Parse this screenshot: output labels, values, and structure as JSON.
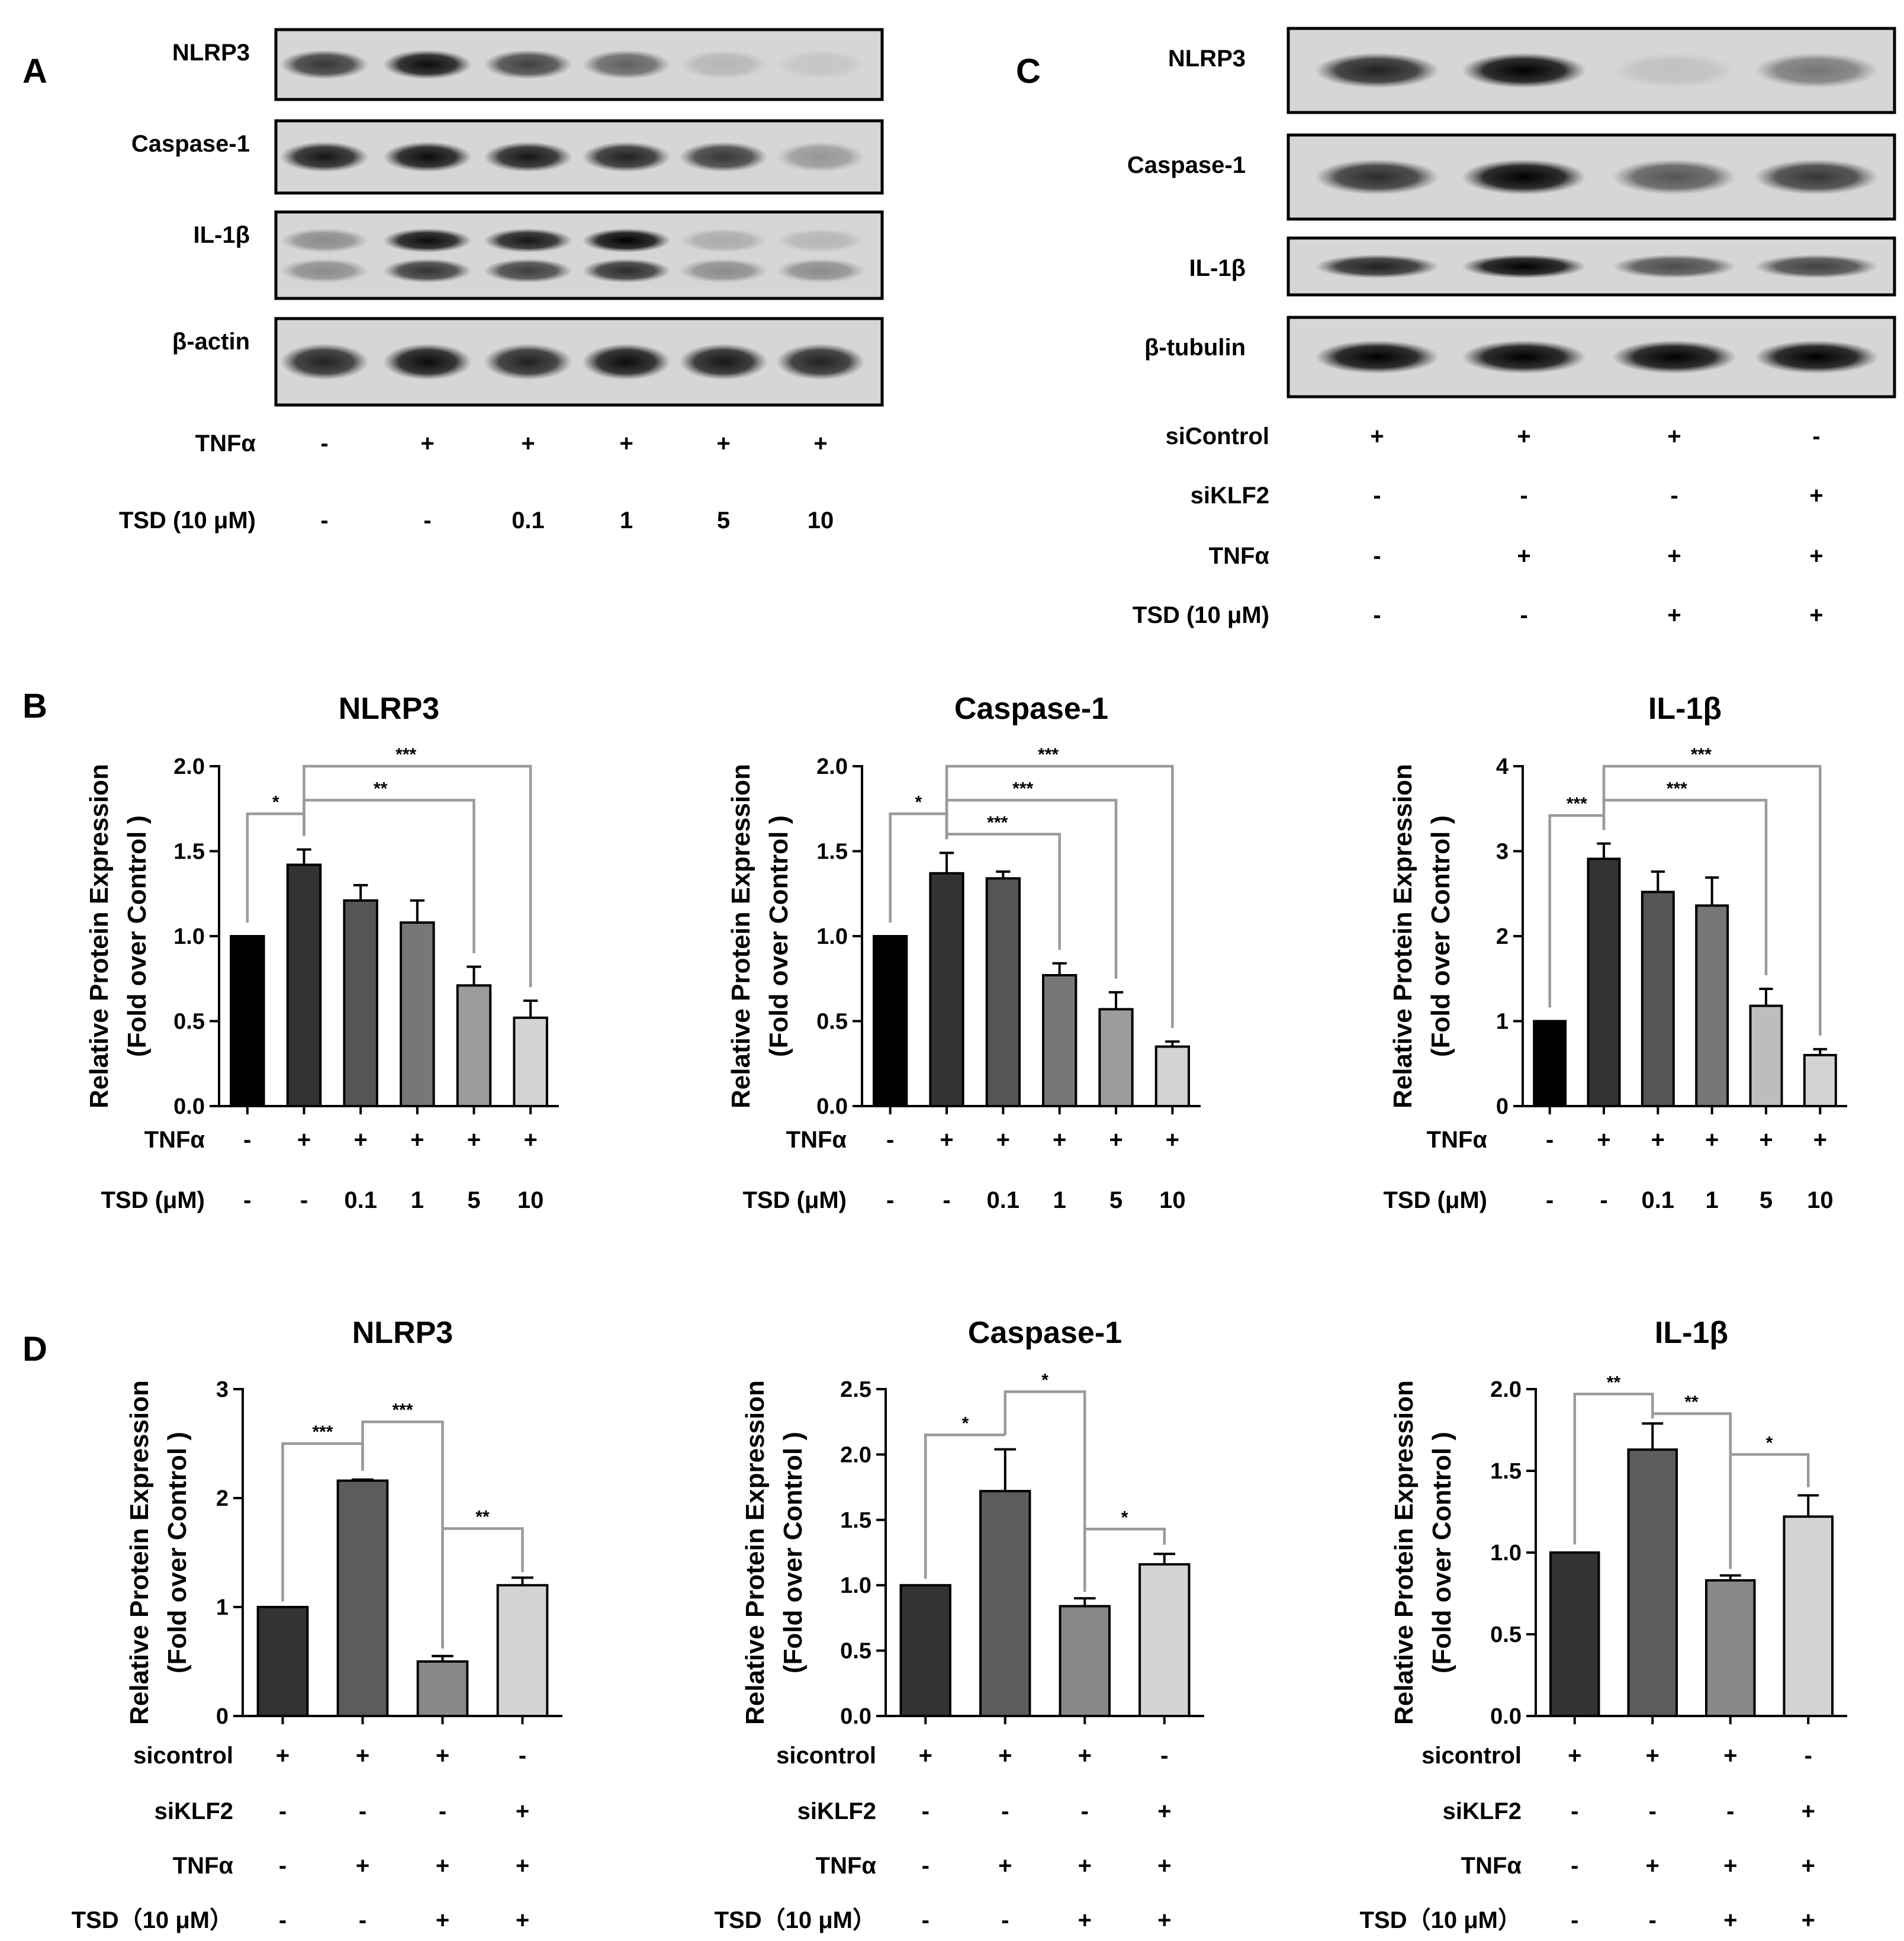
{
  "panels": {
    "A": "A",
    "B": "B",
    "C": "C",
    "D": "D"
  },
  "westernA": {
    "bands": [
      "NLRP3",
      "Caspase-1",
      "IL-1β",
      "β-actin"
    ],
    "conditions": [
      {
        "label": "TNFα",
        "values": [
          "-",
          "+",
          "+",
          "+",
          "+",
          "+"
        ]
      },
      {
        "label": "TSD (10 μM)",
        "values": [
          "-",
          "-",
          "0.1",
          "1",
          "5",
          "10"
        ]
      }
    ],
    "intensities": [
      [
        0.75,
        0.95,
        0.7,
        0.55,
        0.15,
        0.08
      ],
      [
        0.9,
        0.95,
        0.9,
        0.85,
        0.75,
        0.3
      ],
      [
        0.35,
        0.95,
        0.9,
        1.0,
        0.2,
        0.15
      ],
      [
        0.85,
        0.95,
        0.85,
        0.95,
        0.9,
        0.85
      ]
    ]
  },
  "westernC": {
    "bands": [
      "NLRP3",
      "Caspase-1",
      "IL-1β",
      "β-tubulin"
    ],
    "conditions": [
      {
        "label": "siControl",
        "values": [
          "+",
          "+",
          "+",
          "-"
        ]
      },
      {
        "label": "siKLF2",
        "values": [
          "-",
          "-",
          "-",
          "+"
        ]
      },
      {
        "label": "TNFα",
        "values": [
          "-",
          "+",
          "+",
          "+"
        ]
      },
      {
        "label": "TSD (10 μM)",
        "values": [
          "-",
          "-",
          "+",
          "+"
        ]
      }
    ],
    "intensities": [
      [
        0.85,
        1.0,
        0.1,
        0.45
      ],
      [
        0.8,
        1.0,
        0.6,
        0.75
      ],
      [
        0.85,
        1.0,
        0.65,
        0.7
      ],
      [
        1.0,
        1.0,
        1.0,
        1.0
      ]
    ]
  },
  "chart_data": [
    {
      "type": "bar",
      "panel": "B",
      "title": "NLRP3",
      "ylabel": "Relative Protein Expression",
      "ylabel2": "(Fold over Control )",
      "ylim": [
        0,
        2.0
      ],
      "yticks": [
        "0.0",
        "0.5",
        "1.0",
        "1.5",
        "2.0"
      ],
      "values": [
        1.0,
        1.42,
        1.21,
        1.08,
        0.71,
        0.52
      ],
      "errors": [
        0,
        0.09,
        0.09,
        0.13,
        0.11,
        0.1
      ],
      "colors": [
        "#000000",
        "#333333",
        "#555555",
        "#777777",
        "#9c9c9c",
        "#d3d3d3"
      ],
      "conditions": [
        {
          "label": "TNFα",
          "values": [
            "-",
            "+",
            "+",
            "+",
            "+",
            "+"
          ]
        },
        {
          "label": "TSD (μM)",
          "values": [
            "-",
            "-",
            "0.1",
            "1",
            "5",
            "10"
          ]
        }
      ],
      "significance": [
        {
          "from": 0,
          "to": 1,
          "label": "*",
          "level": 1.72
        },
        {
          "from": 1,
          "to": 4,
          "label": "**",
          "level": 1.8
        },
        {
          "from": 1,
          "to": 5,
          "label": "***",
          "level": 2.0
        }
      ]
    },
    {
      "type": "bar",
      "panel": "B",
      "title": "Caspase-1",
      "ylabel": "Relative Protein Expression",
      "ylabel2": "(Fold over Control )",
      "ylim": [
        0,
        2.0
      ],
      "yticks": [
        "0.0",
        "0.5",
        "1.0",
        "1.5",
        "2.0"
      ],
      "values": [
        1.0,
        1.37,
        1.34,
        0.77,
        0.57,
        0.35
      ],
      "errors": [
        0,
        0.12,
        0.04,
        0.07,
        0.1,
        0.03
      ],
      "colors": [
        "#000000",
        "#333333",
        "#555555",
        "#777777",
        "#9c9c9c",
        "#d3d3d3"
      ],
      "conditions": [
        {
          "label": "TNFα",
          "values": [
            "-",
            "+",
            "+",
            "+",
            "+",
            "+"
          ]
        },
        {
          "label": "TSD (μM)",
          "values": [
            "-",
            "-",
            "0.1",
            "1",
            "5",
            "10"
          ]
        }
      ],
      "significance": [
        {
          "from": 0,
          "to": 1,
          "label": "*",
          "level": 1.72
        },
        {
          "from": 1,
          "to": 3,
          "label": "***",
          "level": 1.6
        },
        {
          "from": 1,
          "to": 4,
          "label": "***",
          "level": 1.8
        },
        {
          "from": 1,
          "to": 5,
          "label": "***",
          "level": 2.0
        }
      ]
    },
    {
      "type": "bar",
      "panel": "B",
      "title": "IL-1β",
      "ylabel": "Relative Protein Expression",
      "ylabel2": "(Fold over Control )",
      "ylim": [
        0,
        4
      ],
      "yticks": [
        "0",
        "1",
        "2",
        "3",
        "4"
      ],
      "values": [
        1.0,
        2.91,
        2.52,
        2.36,
        1.18,
        0.6
      ],
      "errors": [
        0,
        0.18,
        0.24,
        0.33,
        0.2,
        0.07
      ],
      "colors": [
        "#000000",
        "#333333",
        "#555555",
        "#777777",
        "#bdbdbd",
        "#d3d3d3"
      ],
      "conditions": [
        {
          "label": "TNFα",
          "values": [
            "-",
            "+",
            "+",
            "+",
            "+",
            "+"
          ]
        },
        {
          "label": "TSD (μM)",
          "values": [
            "-",
            "-",
            "0.1",
            "1",
            "5",
            "10"
          ]
        }
      ],
      "significance": [
        {
          "from": 0,
          "to": 1,
          "label": "***",
          "level": 3.42
        },
        {
          "from": 1,
          "to": 4,
          "label": "***",
          "level": 3.6
        },
        {
          "from": 1,
          "to": 5,
          "label": "***",
          "level": 4.0
        }
      ]
    },
    {
      "type": "bar",
      "panel": "D",
      "title": "NLRP3",
      "ylabel": "Relative Protein Expression",
      "ylabel2": "(Fold over Control )",
      "ylim": [
        0,
        3
      ],
      "yticks": [
        "0",
        "1",
        "2",
        "3"
      ],
      "values": [
        1.0,
        2.16,
        0.5,
        1.2
      ],
      "errors": [
        0,
        0.01,
        0.05,
        0.07
      ],
      "colors": [
        "#333333",
        "#5c5c5c",
        "#888888",
        "#d3d3d3"
      ],
      "conditions": [
        {
          "label": "sicontrol",
          "values": [
            "+",
            "+",
            "+",
            "-"
          ]
        },
        {
          "label": "siKLF2",
          "values": [
            "-",
            "-",
            "-",
            "+"
          ]
        },
        {
          "label": "TNFα",
          "values": [
            "-",
            "+",
            "+",
            "+"
          ]
        },
        {
          "label": "TSD（10 μM）",
          "values": [
            "-",
            "-",
            "+",
            "+"
          ]
        }
      ],
      "significance": [
        {
          "from": 0,
          "to": 1,
          "label": "***",
          "level": 2.5,
          "dropFrom": 1.05,
          "dropTo": 2.25
        },
        {
          "from": 1,
          "to": 2,
          "label": "***",
          "level": 2.7,
          "dropFrom": 2.25,
          "dropTo": 0.62
        },
        {
          "from": 2,
          "to": 3,
          "label": "**",
          "level": 1.72,
          "dropFrom": 0.62,
          "dropTo": 1.32
        }
      ]
    },
    {
      "type": "bar",
      "panel": "D",
      "title": "Caspase-1",
      "ylabel": "Relative Protein Expression",
      "ylabel2": "(Fold over Control )",
      "ylim": [
        0,
        2.5
      ],
      "yticks": [
        "0.0",
        "0.5",
        "1.0",
        "1.5",
        "2.0",
        "2.5"
      ],
      "values": [
        1.0,
        1.72,
        0.84,
        1.16
      ],
      "errors": [
        0,
        0.32,
        0.06,
        0.08
      ],
      "colors": [
        "#333333",
        "#5c5c5c",
        "#888888",
        "#d3d3d3"
      ],
      "conditions": [
        {
          "label": "sicontrol",
          "values": [
            "+",
            "+",
            "+",
            "-"
          ]
        },
        {
          "label": "siKLF2",
          "values": [
            "-",
            "-",
            "-",
            "+"
          ]
        },
        {
          "label": "TNFα",
          "values": [
            "-",
            "+",
            "+",
            "+"
          ]
        },
        {
          "label": "TSD（10 μM）",
          "values": [
            "-",
            "-",
            "+",
            "+"
          ]
        }
      ],
      "significance": [
        {
          "from": 0,
          "to": 1,
          "label": "*",
          "level": 2.15,
          "dropFrom": 1.05,
          "dropTo": 2.15
        },
        {
          "from": 1,
          "to": 2,
          "label": "*",
          "level": 2.48,
          "dropFrom": 2.15,
          "dropTo": 0.95
        },
        {
          "from": 2,
          "to": 3,
          "label": "*",
          "level": 1.43,
          "dropFrom": 0.95,
          "dropTo": 1.31
        }
      ]
    },
    {
      "type": "bar",
      "panel": "D",
      "title": "IL-1β",
      "ylabel": "Relative Protein Expression",
      "ylabel2": "(Fold over Control )",
      "ylim": [
        0,
        2.0
      ],
      "yticks": [
        "0.0",
        "0.5",
        "1.0",
        "1.5",
        "2.0"
      ],
      "values": [
        1.0,
        1.63,
        0.83,
        1.22
      ],
      "errors": [
        0,
        0.16,
        0.03,
        0.13
      ],
      "colors": [
        "#333333",
        "#5c5c5c",
        "#888888",
        "#d3d3d3"
      ],
      "conditions": [
        {
          "label": "sicontrol",
          "values": [
            "+",
            "+",
            "+",
            "-"
          ]
        },
        {
          "label": "siKLF2",
          "values": [
            "-",
            "-",
            "-",
            "+"
          ]
        },
        {
          "label": "TNFα",
          "values": [
            "-",
            "+",
            "+",
            "+"
          ]
        },
        {
          "label": "TSD（10 μM）",
          "values": [
            "-",
            "-",
            "+",
            "+"
          ]
        }
      ],
      "significance": [
        {
          "from": 0,
          "to": 1,
          "label": "**",
          "level": 1.97,
          "dropFrom": 1.05,
          "dropTo": 1.82
        },
        {
          "from": 1,
          "to": 2,
          "label": "**",
          "level": 1.85,
          "dropFrom": 1.82,
          "dropTo": 0.9
        },
        {
          "from": 2,
          "to": 3,
          "label": "*",
          "level": 1.6,
          "dropFrom": 0.9,
          "dropTo": 1.4
        }
      ]
    }
  ]
}
